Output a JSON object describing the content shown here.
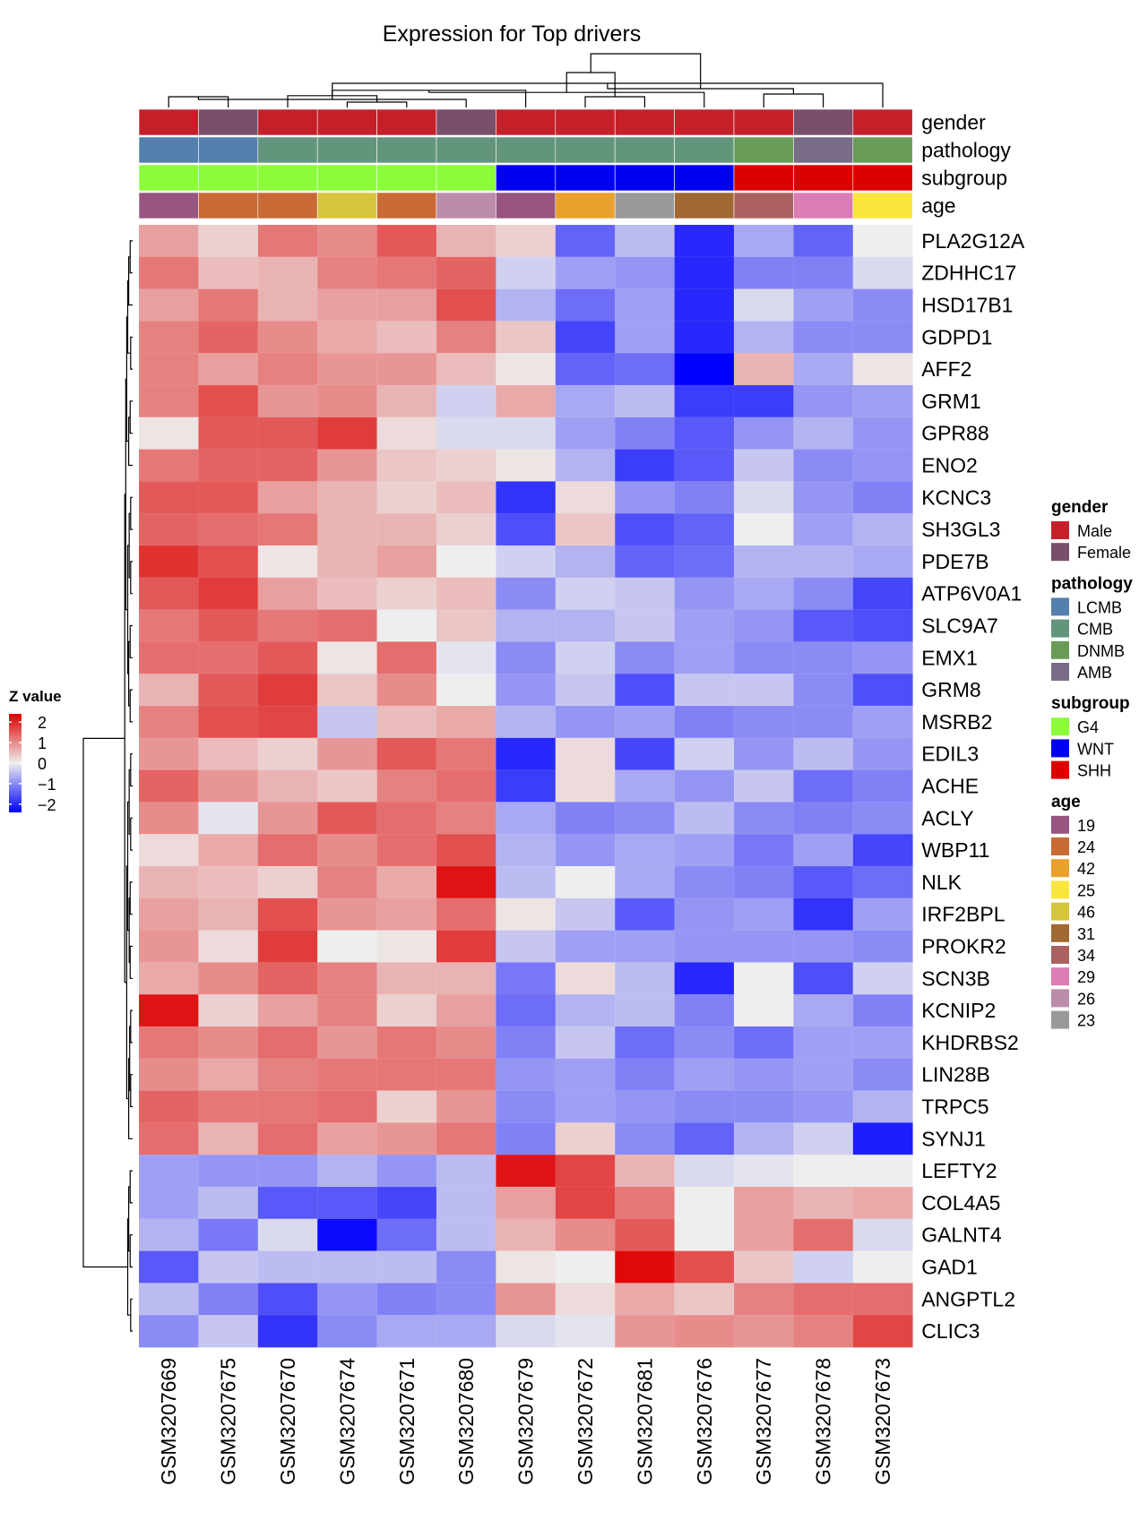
{
  "chart_data": {
    "type": "heatmap",
    "title": "Expression for Top drivers",
    "samples": [
      "GSM3207669",
      "GSM3207675",
      "GSM3207670",
      "GSM3207674",
      "GSM3207671",
      "GSM3207680",
      "GSM3207679",
      "GSM3207672",
      "GSM3207681",
      "GSM3207676",
      "GSM3207677",
      "GSM3207678",
      "GSM3207673"
    ],
    "genes": [
      "PLA2G12A",
      "ZDHHC17",
      "HSD17B1",
      "GDPD1",
      "AFF2",
      "GRM1",
      "GPR88",
      "ENO2",
      "KCNC3",
      "SH3GL3",
      "PDE7B",
      "ATP6V0A1",
      "SLC9A7",
      "EMX1",
      "GRM8",
      "MSRB2",
      "EDIL3",
      "ACHE",
      "ACLY",
      "WBP11",
      "NLK",
      "IRF2BPL",
      "PROKR2",
      "SCN3B",
      "KCNIP2",
      "KHDRBS2",
      "LIN28B",
      "TRPC5",
      "SYNJ1",
      "LEFTY2",
      "COL4A5",
      "GALNT4",
      "GAD1",
      "ANGPTL2",
      "CLIC3"
    ],
    "values": [
      [
        0.8,
        0.3,
        1.2,
        1.0,
        1.5,
        0.6,
        0.3,
        -1.4,
        -0.5,
        -2.0,
        -0.7,
        -1.4,
        0.0
      ],
      [
        1.2,
        0.5,
        0.6,
        1.1,
        1.2,
        1.4,
        -0.3,
        -0.8,
        -0.9,
        -2.0,
        -1.1,
        -1.1,
        -0.2
      ],
      [
        0.8,
        1.2,
        0.6,
        0.8,
        0.8,
        1.6,
        -0.6,
        -1.3,
        -0.8,
        -2.0,
        -0.2,
        -0.8,
        -1.0
      ],
      [
        1.1,
        1.4,
        1.0,
        0.7,
        0.5,
        1.1,
        0.4,
        -1.7,
        -0.8,
        -2.0,
        -0.6,
        -1.0,
        -1.0
      ],
      [
        1.1,
        0.8,
        1.1,
        0.9,
        0.9,
        0.5,
        0.1,
        -1.4,
        -1.3,
        -2.4,
        0.6,
        -0.7,
        0.1
      ],
      [
        1.1,
        1.6,
        0.9,
        1.0,
        0.6,
        -0.3,
        0.7,
        -0.7,
        -0.5,
        -1.8,
        -1.8,
        -0.9,
        -0.8
      ],
      [
        0.1,
        1.5,
        1.5,
        1.8,
        0.2,
        -0.2,
        -0.2,
        -0.8,
        -1.1,
        -1.5,
        -0.9,
        -0.6,
        -0.9
      ],
      [
        1.2,
        1.4,
        1.4,
        0.9,
        0.4,
        0.3,
        0.1,
        -0.6,
        -1.8,
        -1.5,
        -0.4,
        -1.0,
        -0.9
      ],
      [
        1.5,
        1.5,
        0.8,
        0.6,
        0.3,
        0.5,
        -1.9,
        0.2,
        -0.9,
        -1.1,
        -0.2,
        -0.9,
        -1.1
      ],
      [
        1.4,
        1.3,
        1.2,
        0.6,
        0.6,
        0.3,
        -1.6,
        0.4,
        -1.6,
        -1.4,
        0.0,
        -0.8,
        -0.6
      ],
      [
        1.9,
        1.6,
        0.1,
        0.6,
        0.8,
        0.0,
        -0.3,
        -0.6,
        -1.4,
        -1.3,
        -0.6,
        -0.6,
        -0.7
      ],
      [
        1.5,
        1.8,
        0.8,
        0.5,
        0.3,
        0.5,
        -1.0,
        -0.3,
        -0.4,
        -0.9,
        -0.7,
        -1.0,
        -1.7
      ],
      [
        1.2,
        1.5,
        1.2,
        1.3,
        0.0,
        0.4,
        -0.6,
        -0.6,
        -0.4,
        -0.8,
        -0.9,
        -1.5,
        -1.6
      ],
      [
        1.3,
        1.3,
        1.5,
        0.1,
        1.3,
        -0.1,
        -1.0,
        -0.3,
        -1.0,
        -0.8,
        -1.0,
        -1.0,
        -0.9
      ],
      [
        0.6,
        1.5,
        1.8,
        0.4,
        1.0,
        0.0,
        -0.9,
        -0.4,
        -1.6,
        -0.4,
        -0.4,
        -1.0,
        -1.6
      ],
      [
        1.1,
        1.6,
        1.7,
        -0.4,
        0.5,
        0.7,
        -0.6,
        -0.9,
        -0.8,
        -1.1,
        -1.0,
        -1.0,
        -0.8
      ],
      [
        0.9,
        0.5,
        0.3,
        0.9,
        1.5,
        1.2,
        -2.0,
        0.2,
        -1.7,
        -0.3,
        -0.9,
        -0.5,
        -0.9
      ],
      [
        1.4,
        0.9,
        0.6,
        0.4,
        1.1,
        1.3,
        -1.8,
        0.2,
        -0.7,
        -0.9,
        -0.4,
        -1.3,
        -1.1
      ],
      [
        1.0,
        -0.1,
        0.9,
        1.5,
        1.3,
        1.1,
        -0.7,
        -1.1,
        -1.0,
        -0.5,
        -1.0,
        -1.1,
        -1.0
      ],
      [
        0.2,
        0.7,
        1.3,
        1.0,
        1.3,
        1.6,
        -0.6,
        -0.9,
        -0.7,
        -0.8,
        -1.2,
        -0.8,
        -1.7
      ],
      [
        0.6,
        0.5,
        0.3,
        1.1,
        0.7,
        2.2,
        -0.5,
        0.0,
        -0.7,
        -1.0,
        -1.1,
        -1.5,
        -1.3
      ],
      [
        0.8,
        0.6,
        1.6,
        0.9,
        0.8,
        1.3,
        0.1,
        -0.4,
        -1.5,
        -0.9,
        -0.8,
        -1.9,
        -0.8
      ],
      [
        0.9,
        0.2,
        1.8,
        0.0,
        0.1,
        1.8,
        -0.4,
        -0.8,
        -0.8,
        -0.9,
        -0.9,
        -0.9,
        -1.0
      ],
      [
        0.7,
        1.0,
        1.4,
        1.1,
        0.6,
        0.6,
        -1.2,
        0.2,
        -0.5,
        -2.0,
        0.0,
        -1.6,
        -0.3
      ],
      [
        2.2,
        0.3,
        0.8,
        1.1,
        0.3,
        0.8,
        -1.3,
        -0.6,
        -0.5,
        -1.1,
        0.0,
        -0.7,
        -1.1
      ],
      [
        1.2,
        1.0,
        1.3,
        0.9,
        1.2,
        1.0,
        -1.1,
        -0.4,
        -1.3,
        -1.0,
        -1.3,
        -0.8,
        -0.8
      ],
      [
        1.0,
        0.7,
        1.1,
        1.2,
        1.2,
        1.2,
        -0.9,
        -0.8,
        -1.1,
        -0.8,
        -0.9,
        -0.8,
        -1.0
      ],
      [
        1.4,
        1.2,
        1.2,
        1.3,
        0.3,
        0.9,
        -1.0,
        -0.8,
        -0.9,
        -1.0,
        -1.0,
        -0.9,
        -0.6
      ],
      [
        1.3,
        0.6,
        1.3,
        0.8,
        0.9,
        1.2,
        -1.1,
        0.3,
        -1.0,
        -1.4,
        -0.6,
        -0.3,
        -2.1
      ],
      [
        -0.8,
        -0.9,
        -0.9,
        -0.6,
        -0.9,
        -0.5,
        2.2,
        1.7,
        0.6,
        -0.2,
        -0.1,
        0.0,
        0.0
      ],
      [
        -0.8,
        -0.5,
        -1.5,
        -1.5,
        -1.7,
        -0.5,
        0.8,
        1.7,
        1.2,
        0.0,
        0.8,
        0.6,
        0.7
      ],
      [
        -0.6,
        -1.2,
        -0.2,
        -2.3,
        -1.3,
        -0.5,
        0.6,
        1.0,
        1.5,
        0.0,
        0.8,
        1.3,
        -0.2
      ],
      [
        -1.5,
        -0.4,
        -0.5,
        -0.5,
        -0.5,
        -1.0,
        0.1,
        0.0,
        2.3,
        1.6,
        0.4,
        -0.3,
        0.0
      ],
      [
        -0.5,
        -1.1,
        -1.6,
        -0.9,
        -1.1,
        -1.0,
        0.9,
        0.2,
        0.7,
        0.4,
        1.1,
        1.3,
        1.3
      ],
      [
        -1.0,
        -0.4,
        -1.9,
        -1.0,
        -0.7,
        -0.7,
        -0.2,
        -0.1,
        0.9,
        1.0,
        0.9,
        1.1,
        1.7
      ]
    ],
    "annotations": [
      {
        "name": "gender",
        "values": [
          "Male",
          "Female",
          "Male",
          "Male",
          "Male",
          "Female",
          "Male",
          "Male",
          "Male",
          "Male",
          "Male",
          "Female",
          "Male"
        ]
      },
      {
        "name": "pathology",
        "values": [
          "LCMB",
          "LCMB",
          "CMB",
          "CMB",
          "CMB",
          "CMB",
          "CMB",
          "CMB",
          "CMB",
          "CMB",
          "DNMB",
          "AMB",
          "DNMB"
        ]
      },
      {
        "name": "subgroup",
        "values": [
          "G4",
          "G4",
          "G4",
          "G4",
          "G4",
          "G4",
          "WNT",
          "WNT",
          "WNT",
          "WNT",
          "SHH",
          "SHH",
          "SHH"
        ]
      },
      {
        "name": "age",
        "values": [
          "19",
          "24",
          "24",
          "46",
          "24",
          "26",
          "19",
          "42",
          "23",
          "31",
          "34",
          "29",
          "25"
        ]
      }
    ],
    "legend_groups": [
      {
        "title": "gender",
        "items": [
          {
            "label": "Male",
            "color": "#c5202a"
          },
          {
            "label": "Female",
            "color": "#7b4e6b"
          }
        ]
      },
      {
        "title": "pathology",
        "items": [
          {
            "label": "LCMB",
            "color": "#5380ad"
          },
          {
            "label": "CMB",
            "color": "#63957c"
          },
          {
            "label": "DNMB",
            "color": "#6a9b56"
          },
          {
            "label": "AMB",
            "color": "#786c86"
          }
        ]
      },
      {
        "title": "subgroup",
        "items": [
          {
            "label": "G4",
            "color": "#8afc3a"
          },
          {
            "label": "WNT",
            "color": "#0000f3"
          },
          {
            "label": "SHH",
            "color": "#dc0000"
          }
        ]
      },
      {
        "title": "age",
        "items": [
          {
            "label": "19",
            "color": "#975580"
          },
          {
            "label": "24",
            "color": "#c96a34"
          },
          {
            "label": "42",
            "color": "#e9a02c"
          },
          {
            "label": "25",
            "color": "#f8e63e"
          },
          {
            "label": "46",
            "color": "#d7c43d"
          },
          {
            "label": "31",
            "color": "#a06832"
          },
          {
            "label": "34",
            "color": "#ac6161"
          },
          {
            "label": "29",
            "color": "#dc7cb4"
          },
          {
            "label": "26",
            "color": "#bc8cab"
          },
          {
            "label": "23",
            "color": "#999999"
          }
        ]
      }
    ],
    "color_scale": {
      "title": "Z value",
      "ticks": [
        "2",
        "1",
        "0",
        "−1",
        "−2"
      ],
      "tick_values": [
        2,
        1,
        0,
        -1,
        -2
      ],
      "range": [
        -2.4,
        2.4
      ],
      "low_color": "#0000ff",
      "mid_color": "#eeeeee",
      "high_color": "#dd0000"
    },
    "col_dendrogram": {
      "nodes": [
        [
          0,
          1,
          0.2
        ],
        [
          3,
          4,
          0.1
        ],
        [
          5,
          13,
          0.15
        ],
        [
          2,
          14,
          0.22
        ],
        [
          15,
          6,
          0.32
        ],
        [
          12,
          16,
          0.45
        ],
        [
          11,
          10,
          0.25
        ],
        [
          7,
          8,
          0.2
        ],
        [
          17,
          9,
          0.28
        ],
        [
          19,
          18,
          0.35
        ],
        [
          20,
          21,
          0.65
        ],
        [
          22,
          23,
          1.0
        ]
      ]
    },
    "row_dendrogram": {
      "nodes": [
        [
          0,
          1,
          0.05
        ],
        [
          35,
          2,
          0.08
        ],
        [
          3,
          4,
          0.04
        ],
        [
          36,
          37,
          0.1
        ],
        [
          5,
          6,
          0.05
        ],
        [
          39,
          7,
          0.08
        ],
        [
          38,
          40,
          0.12
        ],
        [
          8,
          9,
          0.04
        ],
        [
          10,
          11,
          0.04
        ],
        [
          42,
          43,
          0.07
        ],
        [
          12,
          13,
          0.05
        ],
        [
          14,
          15,
          0.05
        ],
        [
          45,
          46,
          0.08
        ],
        [
          44,
          47,
          0.1
        ],
        [
          41,
          48,
          0.14
        ],
        [
          16,
          17,
          0.04
        ],
        [
          18,
          19,
          0.04
        ],
        [
          50,
          51,
          0.07
        ],
        [
          20,
          21,
          0.05
        ],
        [
          22,
          23,
          0.05
        ],
        [
          53,
          54,
          0.07
        ],
        [
          52,
          55,
          0.1
        ],
        [
          24,
          25,
          0.04
        ],
        [
          26,
          27,
          0.04
        ],
        [
          57,
          58,
          0.06
        ],
        [
          59,
          28,
          0.08
        ],
        [
          56,
          60,
          0.12
        ],
        [
          49,
          61,
          0.16
        ],
        [
          29,
          30,
          0.05
        ],
        [
          31,
          32,
          0.05
        ],
        [
          63,
          64,
          0.08
        ],
        [
          33,
          34,
          0.04
        ],
        [
          65,
          66,
          0.1
        ],
        [
          62,
          67,
          1.0
        ]
      ]
    }
  }
}
